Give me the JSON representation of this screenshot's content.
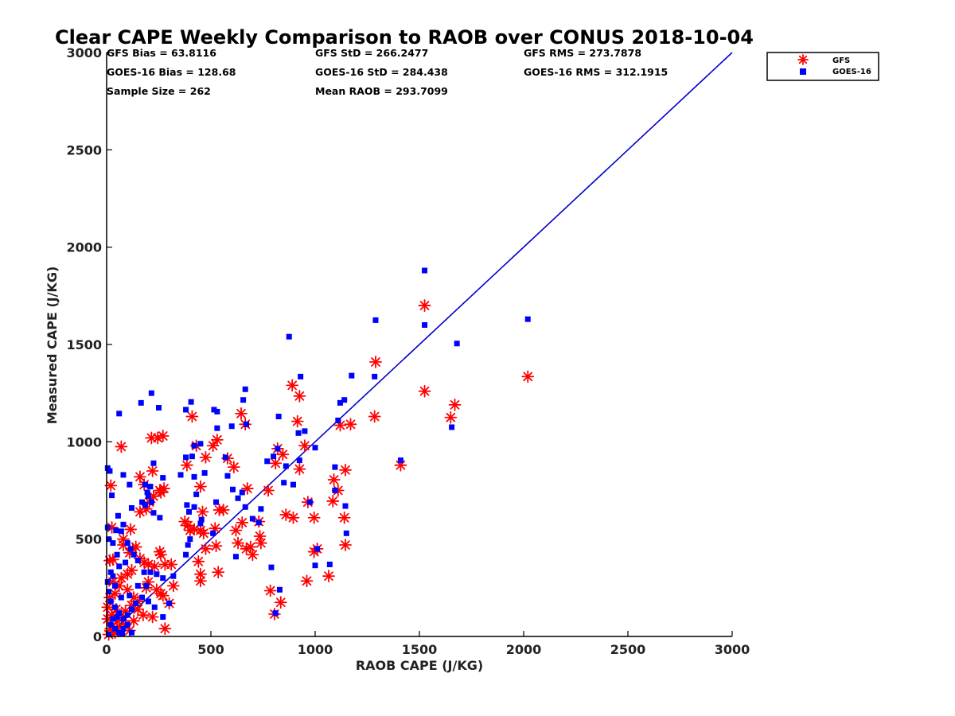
{
  "chart_data": {
    "type": "scatter",
    "title": "Clear CAPE Weekly Comparison to RAOB over CONUS 2018-10-04",
    "xlabel": "RAOB CAPE (J/KG)",
    "ylabel": "Measured CAPE (J/KG)",
    "xlim": [
      0,
      3000
    ],
    "ylim": [
      0,
      3000
    ],
    "xticks": [
      "0",
      "500",
      "1000",
      "1500",
      "2000",
      "2500",
      "3000"
    ],
    "yticks": [
      "0",
      "500",
      "1000",
      "1500",
      "2000",
      "2500",
      "3000"
    ],
    "grid": false,
    "legend_position": "top-right",
    "reference_line": {
      "x": [
        0,
        3000
      ],
      "y": [
        0,
        3000
      ],
      "color": "#0000cc"
    },
    "stats": [
      "GFS Bias = 63.8116",
      "GFS StD = 266.2477",
      "GFS RMS = 273.7878",
      "GOES-16 Bias = 128.68",
      "GOES-16 StD = 284.438",
      "GOES-16 RMS = 312.1915",
      "Sample Size = 262",
      "Mean RAOB = 293.7099"
    ],
    "series": [
      {
        "name": "GFS",
        "marker": "asterisk",
        "color": "#ff0000",
        "points": [
          [
            2020,
            1335
          ],
          [
            1670,
            1190
          ],
          [
            1650,
            1125
          ],
          [
            1525,
            1700
          ],
          [
            1525,
            1260
          ],
          [
            1290,
            1410
          ],
          [
            1285,
            1130
          ],
          [
            1410,
            880
          ],
          [
            1170,
            1090
          ],
          [
            1120,
            1085
          ],
          [
            1145,
            855
          ],
          [
            1140,
            610
          ],
          [
            1145,
            470
          ],
          [
            1110,
            750
          ],
          [
            1090,
            805
          ],
          [
            1085,
            695
          ],
          [
            1065,
            310
          ],
          [
            1010,
            450
          ],
          [
            995,
            610
          ],
          [
            965,
            690
          ],
          [
            960,
            285
          ],
          [
            995,
            435
          ],
          [
            950,
            980
          ],
          [
            925,
            1235
          ],
          [
            915,
            1105
          ],
          [
            925,
            860
          ],
          [
            890,
            1290
          ],
          [
            895,
            610
          ],
          [
            860,
            625
          ],
          [
            845,
            935
          ],
          [
            820,
            965
          ],
          [
            810,
            890
          ],
          [
            775,
            750
          ],
          [
            785,
            235
          ],
          [
            805,
            115
          ],
          [
            835,
            175
          ],
          [
            730,
            590
          ],
          [
            735,
            515
          ],
          [
            740,
            480
          ],
          [
            700,
            420
          ],
          [
            690,
            460
          ],
          [
            670,
            450
          ],
          [
            675,
            760
          ],
          [
            665,
            1090
          ],
          [
            645,
            1145
          ],
          [
            610,
            870
          ],
          [
            620,
            545
          ],
          [
            630,
            480
          ],
          [
            650,
            585
          ],
          [
            580,
            915
          ],
          [
            530,
            1010
          ],
          [
            510,
            980
          ],
          [
            475,
            920
          ],
          [
            450,
            770
          ],
          [
            430,
            980
          ],
          [
            410,
            1130
          ],
          [
            385,
            880
          ],
          [
            390,
            570
          ],
          [
            375,
            590
          ],
          [
            400,
            545
          ],
          [
            420,
            550
          ],
          [
            450,
            545
          ],
          [
            460,
            640
          ],
          [
            465,
            530
          ],
          [
            475,
            450
          ],
          [
            450,
            320
          ],
          [
            450,
            285
          ],
          [
            440,
            385
          ],
          [
            525,
            465
          ],
          [
            535,
            330
          ],
          [
            540,
            650
          ],
          [
            560,
            650
          ],
          [
            520,
            555
          ],
          [
            270,
            1030
          ],
          [
            245,
            1020
          ],
          [
            215,
            1020
          ],
          [
            220,
            850
          ],
          [
            225,
            720
          ],
          [
            255,
            750
          ],
          [
            260,
            740
          ],
          [
            275,
            760
          ],
          [
            205,
            690
          ],
          [
            190,
            655
          ],
          [
            180,
            780
          ],
          [
            160,
            820
          ],
          [
            160,
            640
          ],
          [
            115,
            550
          ],
          [
            70,
            975
          ],
          [
            20,
            775
          ],
          [
            25,
            560
          ],
          [
            15,
            390
          ],
          [
            30,
            395
          ],
          [
            30,
            280
          ],
          [
            80,
            500
          ],
          [
            80,
            470
          ],
          [
            110,
            430
          ],
          [
            125,
            450
          ],
          [
            140,
            460
          ],
          [
            160,
            400
          ],
          [
            180,
            380
          ],
          [
            200,
            370
          ],
          [
            230,
            360
          ],
          [
            260,
            420
          ],
          [
            255,
            435
          ],
          [
            280,
            370
          ],
          [
            310,
            370
          ],
          [
            200,
            280
          ],
          [
            190,
            250
          ],
          [
            240,
            240
          ],
          [
            260,
            220
          ],
          [
            270,
            210
          ],
          [
            300,
            170
          ],
          [
            320,
            260
          ],
          [
            280,
            40
          ],
          [
            220,
            100
          ],
          [
            175,
            110
          ],
          [
            150,
            140
          ],
          [
            120,
            160
          ],
          [
            90,
            130
          ],
          [
            50,
            80
          ],
          [
            10,
            10
          ],
          [
            20,
            40
          ],
          [
            5,
            150
          ],
          [
            15,
            200
          ],
          [
            40,
            220
          ],
          [
            60,
            260
          ],
          [
            100,
            240
          ],
          [
            130,
            200
          ],
          [
            150,
            180
          ],
          [
            70,
            300
          ],
          [
            100,
            320
          ],
          [
            120,
            340
          ],
          [
            80,
            100
          ],
          [
            30,
            30
          ],
          [
            5,
            90
          ],
          [
            40,
            20
          ],
          [
            60,
            50
          ],
          [
            90,
            60
          ],
          [
            110,
            30
          ],
          [
            130,
            80
          ],
          [
            45,
            140
          ],
          [
            25,
            110
          ]
        ]
      },
      {
        "name": "GOES-16",
        "marker": "square",
        "color": "#0000ff",
        "points": [
          [
            1525,
            1880
          ],
          [
            1525,
            1600
          ],
          [
            1290,
            1625
          ],
          [
            1285,
            1335
          ],
          [
            2020,
            1630
          ],
          [
            1680,
            1505
          ],
          [
            1655,
            1075
          ],
          [
            1410,
            905
          ],
          [
            1175,
            1340
          ],
          [
            1140,
            1215
          ],
          [
            1120,
            1200
          ],
          [
            1110,
            1110
          ],
          [
            1145,
            670
          ],
          [
            1150,
            530
          ],
          [
            1095,
            750
          ],
          [
            1095,
            870
          ],
          [
            1070,
            370
          ],
          [
            1010,
            450
          ],
          [
            1000,
            365
          ],
          [
            1000,
            970
          ],
          [
            975,
            690
          ],
          [
            950,
            1055
          ],
          [
            930,
            1335
          ],
          [
            920,
            1045
          ],
          [
            925,
            905
          ],
          [
            895,
            780
          ],
          [
            875,
            1540
          ],
          [
            860,
            875
          ],
          [
            850,
            790
          ],
          [
            825,
            1130
          ],
          [
            820,
            965
          ],
          [
            800,
            925
          ],
          [
            770,
            900
          ],
          [
            740,
            655
          ],
          [
            730,
            585
          ],
          [
            700,
            605
          ],
          [
            790,
            355
          ],
          [
            830,
            240
          ],
          [
            810,
            120
          ],
          [
            665,
            1270
          ],
          [
            655,
            1215
          ],
          [
            670,
            1090
          ],
          [
            600,
            1080
          ],
          [
            570,
            920
          ],
          [
            650,
            740
          ],
          [
            630,
            710
          ],
          [
            605,
            755
          ],
          [
            665,
            665
          ],
          [
            620,
            410
          ],
          [
            580,
            825
          ],
          [
            530,
            1155
          ],
          [
            515,
            1165
          ],
          [
            530,
            1070
          ],
          [
            525,
            690
          ],
          [
            510,
            530
          ],
          [
            450,
            990
          ],
          [
            420,
            980
          ],
          [
            405,
            1205
          ],
          [
            380,
            1165
          ],
          [
            410,
            925
          ],
          [
            380,
            920
          ],
          [
            355,
            830
          ],
          [
            420,
            820
          ],
          [
            470,
            840
          ],
          [
            450,
            580
          ],
          [
            455,
            600
          ],
          [
            430,
            730
          ],
          [
            420,
            665
          ],
          [
            385,
            675
          ],
          [
            395,
            640
          ],
          [
            400,
            500
          ],
          [
            390,
            470
          ],
          [
            380,
            420
          ],
          [
            250,
            1175
          ],
          [
            215,
            1250
          ],
          [
            165,
            1200
          ],
          [
            225,
            890
          ],
          [
            210,
            770
          ],
          [
            185,
            780
          ],
          [
            215,
            690
          ],
          [
            225,
            635
          ],
          [
            255,
            610
          ],
          [
            270,
            815
          ],
          [
            195,
            740
          ],
          [
            200,
            720
          ],
          [
            170,
            690
          ],
          [
            185,
            675
          ],
          [
            120,
            660
          ],
          [
            110,
            780
          ],
          [
            80,
            830
          ],
          [
            80,
            575
          ],
          [
            55,
            620
          ],
          [
            15,
            850
          ],
          [
            5,
            865
          ],
          [
            25,
            725
          ],
          [
            60,
            1145
          ],
          [
            45,
            545
          ],
          [
            70,
            540
          ],
          [
            100,
            480
          ],
          [
            115,
            450
          ],
          [
            130,
            420
          ],
          [
            150,
            390
          ],
          [
            180,
            330
          ],
          [
            210,
            330
          ],
          [
            240,
            320
          ],
          [
            270,
            300
          ],
          [
            320,
            310
          ],
          [
            300,
            170
          ],
          [
            270,
            100
          ],
          [
            230,
            150
          ],
          [
            200,
            180
          ],
          [
            170,
            200
          ],
          [
            140,
            170
          ],
          [
            120,
            140
          ],
          [
            100,
            110
          ],
          [
            80,
            90
          ],
          [
            60,
            120
          ],
          [
            40,
            150
          ],
          [
            20,
            180
          ],
          [
            10,
            230
          ],
          [
            5,
            280
          ],
          [
            30,
            310
          ],
          [
            60,
            360
          ],
          [
            90,
            380
          ],
          [
            50,
            420
          ],
          [
            30,
            480
          ],
          [
            10,
            500
          ],
          [
            5,
            560
          ],
          [
            20,
            330
          ],
          [
            40,
            260
          ],
          [
            70,
            200
          ],
          [
            110,
            210
          ],
          [
            150,
            260
          ],
          [
            190,
            260
          ],
          [
            20,
            60
          ],
          [
            40,
            40
          ],
          [
            60,
            20
          ],
          [
            80,
            40
          ],
          [
            100,
            60
          ],
          [
            120,
            20
          ],
          [
            10,
            10
          ],
          [
            30,
            90
          ],
          [
            50,
            100
          ],
          [
            75,
            15
          ]
        ]
      }
    ]
  }
}
